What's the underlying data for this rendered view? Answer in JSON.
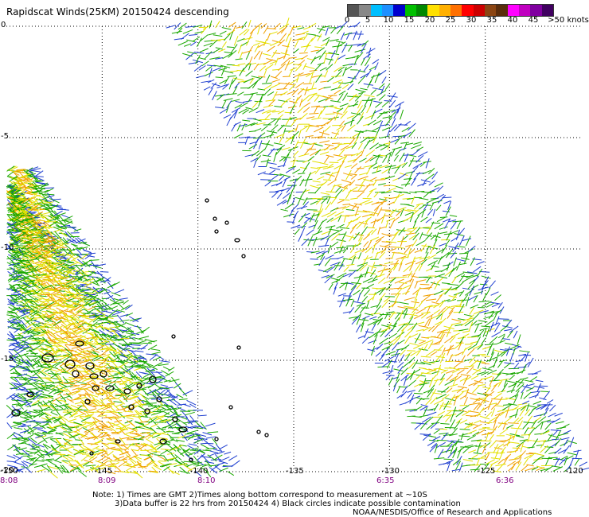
{
  "title": "Rapidscat Winds(25KM) 20150424 descending",
  "legend": {
    "ticks": [
      "0",
      "5",
      "10",
      "15",
      "20",
      "25",
      "30",
      "35",
      "40",
      "45",
      ">50 knots"
    ],
    "colors": [
      "#555555",
      "#888888",
      "#00bfff",
      "#1e90ff",
      "#0000cd",
      "#00c000",
      "#008800",
      "#ffe000",
      "#ffb000",
      "#ff7000",
      "#ff0000",
      "#cc0000",
      "#8b4513",
      "#5a2d0c",
      "#ff00ff",
      "#c000c0",
      "#8000a0",
      "#400060"
    ]
  },
  "map": {
    "lon_ticks": [
      "-150",
      "-145",
      "-140",
      "-135",
      "-130",
      "-125",
      "-120"
    ],
    "lat_ticks": [
      "0",
      "-5",
      "-10",
      "-15",
      "-20"
    ],
    "time_labels": [
      "8:08",
      "8:09",
      "8:10",
      "6:35",
      "6:36"
    ],
    "wind_colors": {
      "low": "#1f3fd0",
      "mid": "#1aa800",
      "high": "#e3e000",
      "higher": "#f0a000"
    }
  },
  "notes": {
    "line1": "Note: 1) Times are GMT 2)Times along bottom correspond to measurement at ~10S",
    "line2": "3)Data buffer is 22 hrs from 20150424 4) Black circles indicate possible contamination",
    "credit": "NOAA/NESDIS/Office of Research and Applications"
  }
}
